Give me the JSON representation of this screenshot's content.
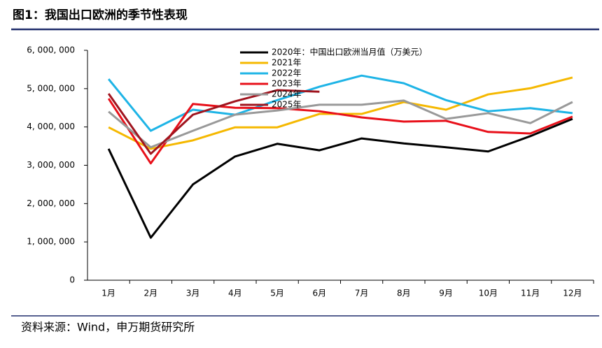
{
  "chart_data": {
    "type": "line",
    "title": "图1：我国出口欧洲的季节性表现",
    "source": "资料来源：Wind，申万期货研究所",
    "categories": [
      "1月",
      "2月",
      "3月",
      "4月",
      "5月",
      "6月",
      "7月",
      "8月",
      "9月",
      "10月",
      "11月",
      "12月"
    ],
    "ylim": [
      0,
      6000000
    ],
    "yticks": [
      0,
      {
        "value": 1000000,
        "label": "1, 000, 000"
      },
      {
        "value": 2000000,
        "label": "2, 000, 000"
      },
      {
        "value": 3000000,
        "label": "3, 000, 000"
      },
      {
        "value": 4000000,
        "label": "4, 000, 000"
      },
      {
        "value": 5000000,
        "label": "5, 000, 000"
      },
      {
        "value": 6000000,
        "label": "6, 000, 000"
      }
    ],
    "series": [
      {
        "name": "2020年：中国出口欧洲当月值（万美元）",
        "color": "#000000",
        "values": [
          3430000,
          1110000,
          2500000,
          3230000,
          3560000,
          3390000,
          3700000,
          3570000,
          3470000,
          3360000,
          3760000,
          4210000
        ]
      },
      {
        "name": "2021年",
        "color": "#f5b800",
        "values": [
          3990000,
          3430000,
          3650000,
          3990000,
          3990000,
          4340000,
          4340000,
          4650000,
          4450000,
          4850000,
          5010000,
          5290000
        ]
      },
      {
        "name": "2022年",
        "color": "#1eb4e6",
        "values": [
          5250000,
          3900000,
          4450000,
          4320000,
          4700000,
          5050000,
          5340000,
          5140000,
          4700000,
          4410000,
          4490000,
          4360000
        ]
      },
      {
        "name": "2023年",
        "color": "#e8101a",
        "values": [
          4740000,
          3050000,
          4600000,
          4500000,
          4490000,
          4410000,
          4250000,
          4140000,
          4160000,
          3870000,
          3830000,
          4270000
        ]
      },
      {
        "name": "2024年",
        "color": "#999999",
        "values": [
          4400000,
          3470000,
          3900000,
          4320000,
          4430000,
          4580000,
          4580000,
          4690000,
          4210000,
          4360000,
          4100000,
          4650000
        ]
      },
      {
        "name": "2025年",
        "color": "#a0141e",
        "values": [
          4870000,
          3300000,
          4320000,
          4670000,
          4960000,
          4920000,
          null,
          null,
          null,
          null,
          null,
          null
        ]
      }
    ]
  }
}
